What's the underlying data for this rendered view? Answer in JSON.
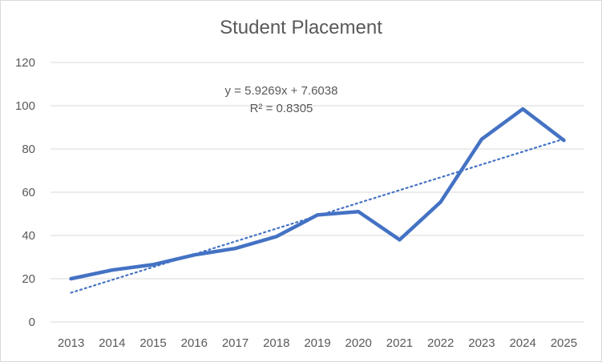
{
  "chart_data": {
    "type": "line",
    "title": "Student Placement",
    "xlabel": "",
    "ylabel": "",
    "categories": [
      "2013",
      "2014",
      "2015",
      "2016",
      "2017",
      "2018",
      "2019",
      "2020",
      "2021",
      "2022",
      "2023",
      "2024",
      "2025"
    ],
    "series": [
      {
        "values": [
          20,
          24,
          26.5,
          31,
          34,
          39.5,
          49.5,
          51,
          38,
          55.5,
          84.5,
          98.5,
          84
        ],
        "color": "#4472c4"
      }
    ],
    "trendline": {
      "type": "linear",
      "slope": 5.9269,
      "intercept": 7.6038,
      "equation": "y = 5.9269x + 7.6038",
      "r_squared": "R² = 0.8305",
      "style": "dotted",
      "color": "#4472c4"
    },
    "ylim": [
      0,
      120
    ],
    "yticks": [
      0,
      20,
      40,
      60,
      80,
      100,
      120
    ],
    "grid": true,
    "legend": "none"
  }
}
